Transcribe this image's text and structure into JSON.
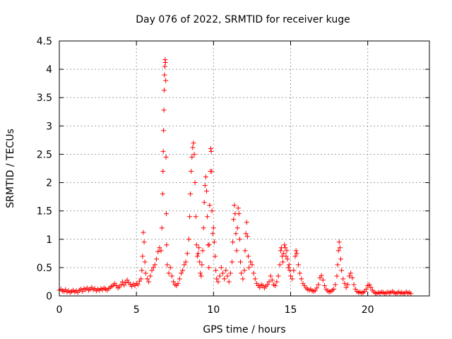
{
  "chart_data": {
    "type": "scatter",
    "title": "Day 076 of 2022, SRMTID for receiver kuge",
    "xlabel": "GPS time / hours",
    "ylabel": "SRMTID / TECUs",
    "xlim": [
      0,
      24
    ],
    "ylim": [
      0,
      4.5
    ],
    "xticks": [
      0,
      5,
      10,
      15,
      20
    ],
    "xtick_labels": [
      "0",
      "5",
      "10",
      "15",
      "20"
    ],
    "yticks": [
      0,
      0.5,
      1,
      1.5,
      2,
      2.5,
      3,
      3.5,
      4,
      4.5
    ],
    "ytick_labels": [
      "0",
      "0.5",
      "1",
      "1.5",
      "2",
      "2.5",
      "3",
      "3.5",
      "4",
      "4.5"
    ],
    "grid": true,
    "marker": "+",
    "series": [
      {
        "name": "SRMTID",
        "color": "#ff0000",
        "points": [
          [
            0.0,
            0.1
          ],
          [
            0.1,
            0.12
          ],
          [
            0.2,
            0.09
          ],
          [
            0.3,
            0.08
          ],
          [
            0.4,
            0.11
          ],
          [
            0.5,
            0.07
          ],
          [
            0.6,
            0.09
          ],
          [
            0.7,
            0.06
          ],
          [
            0.8,
            0.08
          ],
          [
            0.9,
            0.1
          ],
          [
            1.0,
            0.07
          ],
          [
            1.1,
            0.09
          ],
          [
            1.2,
            0.06
          ],
          [
            1.3,
            0.1
          ],
          [
            1.4,
            0.12
          ],
          [
            1.5,
            0.08
          ],
          [
            1.6,
            0.13
          ],
          [
            1.7,
            0.11
          ],
          [
            1.8,
            0.14
          ],
          [
            1.9,
            0.1
          ],
          [
            2.0,
            0.12
          ],
          [
            2.1,
            0.15
          ],
          [
            2.2,
            0.11
          ],
          [
            2.3,
            0.13
          ],
          [
            2.4,
            0.09
          ],
          [
            2.5,
            0.12
          ],
          [
            2.6,
            0.1
          ],
          [
            2.7,
            0.13
          ],
          [
            2.8,
            0.11
          ],
          [
            2.9,
            0.14
          ],
          [
            3.0,
            0.12
          ],
          [
            3.1,
            0.1
          ],
          [
            3.2,
            0.13
          ],
          [
            3.3,
            0.15
          ],
          [
            3.4,
            0.17
          ],
          [
            3.5,
            0.19
          ],
          [
            3.6,
            0.22
          ],
          [
            3.7,
            0.18
          ],
          [
            3.8,
            0.14
          ],
          [
            3.9,
            0.16
          ],
          [
            4.0,
            0.2
          ],
          [
            4.1,
            0.25
          ],
          [
            4.2,
            0.19
          ],
          [
            4.3,
            0.23
          ],
          [
            4.4,
            0.28
          ],
          [
            4.5,
            0.24
          ],
          [
            4.6,
            0.2
          ],
          [
            4.7,
            0.17
          ],
          [
            4.8,
            0.21
          ],
          [
            4.9,
            0.18
          ],
          [
            5.0,
            0.22
          ],
          [
            5.1,
            0.2
          ],
          [
            5.2,
            0.26
          ],
          [
            5.3,
            0.3
          ],
          [
            5.35,
            0.45
          ],
          [
            5.4,
            0.7
          ],
          [
            5.45,
            1.12
          ],
          [
            5.5,
            0.95
          ],
          [
            5.55,
            0.6
          ],
          [
            5.6,
            0.4
          ],
          [
            5.7,
            0.3
          ],
          [
            5.8,
            0.25
          ],
          [
            5.9,
            0.35
          ],
          [
            6.0,
            0.45
          ],
          [
            6.1,
            0.5
          ],
          [
            6.2,
            0.55
          ],
          [
            6.3,
            0.65
          ],
          [
            6.4,
            0.78
          ],
          [
            6.5,
            0.85
          ],
          [
            6.6,
            0.8
          ],
          [
            6.65,
            1.2
          ],
          [
            6.7,
            1.8
          ],
          [
            6.72,
            2.2
          ],
          [
            6.74,
            2.55
          ],
          [
            6.76,
            2.92
          ],
          [
            6.78,
            3.28
          ],
          [
            6.8,
            3.63
          ],
          [
            6.82,
            3.9
          ],
          [
            6.84,
            4.05
          ],
          [
            6.86,
            4.17
          ],
          [
            6.88,
            4.12
          ],
          [
            6.9,
            3.8
          ],
          [
            6.92,
            2.45
          ],
          [
            6.94,
            1.45
          ],
          [
            6.96,
            0.9
          ],
          [
            7.0,
            0.55
          ],
          [
            7.1,
            0.4
          ],
          [
            7.2,
            0.5
          ],
          [
            7.3,
            0.35
          ],
          [
            7.4,
            0.25
          ],
          [
            7.5,
            0.2
          ],
          [
            7.6,
            0.18
          ],
          [
            7.7,
            0.22
          ],
          [
            7.8,
            0.3
          ],
          [
            7.9,
            0.4
          ],
          [
            8.0,
            0.45
          ],
          [
            8.1,
            0.55
          ],
          [
            8.2,
            0.6
          ],
          [
            8.3,
            0.75
          ],
          [
            8.4,
            1.0
          ],
          [
            8.45,
            1.4
          ],
          [
            8.5,
            1.8
          ],
          [
            8.55,
            2.2
          ],
          [
            8.6,
            2.45
          ],
          [
            8.65,
            2.62
          ],
          [
            8.7,
            2.7
          ],
          [
            8.75,
            2.5
          ],
          [
            8.8,
            2.0
          ],
          [
            8.85,
            1.4
          ],
          [
            8.9,
            0.9
          ],
          [
            8.95,
            0.7
          ],
          [
            9.0,
            0.75
          ],
          [
            9.05,
            0.85
          ],
          [
            9.1,
            0.6
          ],
          [
            9.15,
            0.4
          ],
          [
            9.2,
            0.35
          ],
          [
            9.25,
            0.55
          ],
          [
            9.3,
            0.8
          ],
          [
            9.35,
            1.2
          ],
          [
            9.4,
            1.65
          ],
          [
            9.45,
            1.95
          ],
          [
            9.5,
            2.1
          ],
          [
            9.55,
            1.85
          ],
          [
            9.6,
            1.4
          ],
          [
            9.65,
            0.9
          ],
          [
            9.7,
            0.5
          ],
          [
            9.72,
            0.9
          ],
          [
            9.75,
            1.6
          ],
          [
            9.8,
            2.2
          ],
          [
            9.82,
            2.6
          ],
          [
            9.85,
            2.55
          ],
          [
            9.88,
            2.2
          ],
          [
            9.9,
            1.5
          ],
          [
            9.95,
            1.1
          ],
          [
            10.0,
            1.2
          ],
          [
            10.05,
            0.95
          ],
          [
            10.1,
            0.7
          ],
          [
            10.15,
            0.45
          ],
          [
            10.2,
            0.3
          ],
          [
            10.3,
            0.25
          ],
          [
            10.4,
            0.35
          ],
          [
            10.5,
            0.5
          ],
          [
            10.6,
            0.4
          ],
          [
            10.7,
            0.3
          ],
          [
            10.8,
            0.45
          ],
          [
            10.9,
            0.35
          ],
          [
            11.0,
            0.25
          ],
          [
            11.1,
            0.4
          ],
          [
            11.2,
            0.6
          ],
          [
            11.25,
            0.95
          ],
          [
            11.3,
            1.35
          ],
          [
            11.35,
            1.6
          ],
          [
            11.4,
            1.45
          ],
          [
            11.45,
            1.1
          ],
          [
            11.5,
            0.8
          ],
          [
            11.55,
            1.2
          ],
          [
            11.6,
            1.55
          ],
          [
            11.65,
            1.45
          ],
          [
            11.7,
            1.0
          ],
          [
            11.75,
            0.6
          ],
          [
            11.8,
            0.4
          ],
          [
            11.9,
            0.3
          ],
          [
            12.0,
            0.45
          ],
          [
            12.05,
            0.8
          ],
          [
            12.1,
            1.1
          ],
          [
            12.15,
            1.3
          ],
          [
            12.2,
            1.05
          ],
          [
            12.25,
            0.7
          ],
          [
            12.3,
            0.5
          ],
          [
            12.4,
            0.6
          ],
          [
            12.5,
            0.55
          ],
          [
            12.6,
            0.4
          ],
          [
            12.7,
            0.3
          ],
          [
            12.8,
            0.22
          ],
          [
            12.9,
            0.18
          ],
          [
            13.0,
            0.15
          ],
          [
            13.1,
            0.2
          ],
          [
            13.2,
            0.18
          ],
          [
            13.3,
            0.14
          ],
          [
            13.4,
            0.17
          ],
          [
            13.5,
            0.2
          ],
          [
            13.6,
            0.25
          ],
          [
            13.7,
            0.35
          ],
          [
            13.8,
            0.28
          ],
          [
            13.9,
            0.2
          ],
          [
            14.0,
            0.18
          ],
          [
            14.1,
            0.25
          ],
          [
            14.2,
            0.35
          ],
          [
            14.3,
            0.55
          ],
          [
            14.35,
            0.8
          ],
          [
            14.4,
            0.85
          ],
          [
            14.45,
            0.7
          ],
          [
            14.5,
            0.6
          ],
          [
            14.55,
            0.75
          ],
          [
            14.6,
            0.9
          ],
          [
            14.65,
            0.85
          ],
          [
            14.7,
            0.7
          ],
          [
            14.75,
            0.8
          ],
          [
            14.8,
            0.65
          ],
          [
            14.85,
            0.5
          ],
          [
            14.9,
            0.55
          ],
          [
            14.95,
            0.45
          ],
          [
            15.0,
            0.35
          ],
          [
            15.1,
            0.3
          ],
          [
            15.2,
            0.45
          ],
          [
            15.3,
            0.7
          ],
          [
            15.35,
            0.8
          ],
          [
            15.4,
            0.75
          ],
          [
            15.5,
            0.55
          ],
          [
            15.6,
            0.4
          ],
          [
            15.7,
            0.3
          ],
          [
            15.8,
            0.22
          ],
          [
            15.9,
            0.18
          ],
          [
            16.0,
            0.14
          ],
          [
            16.1,
            0.12
          ],
          [
            16.2,
            0.1
          ],
          [
            16.3,
            0.12
          ],
          [
            16.4,
            0.09
          ],
          [
            16.5,
            0.08
          ],
          [
            16.6,
            0.1
          ],
          [
            16.7,
            0.14
          ],
          [
            16.8,
            0.2
          ],
          [
            16.9,
            0.32
          ],
          [
            17.0,
            0.36
          ],
          [
            17.1,
            0.28
          ],
          [
            17.2,
            0.18
          ],
          [
            17.3,
            0.12
          ],
          [
            17.4,
            0.09
          ],
          [
            17.5,
            0.07
          ],
          [
            17.6,
            0.08
          ],
          [
            17.7,
            0.1
          ],
          [
            17.8,
            0.12
          ],
          [
            17.9,
            0.2
          ],
          [
            18.0,
            0.35
          ],
          [
            18.05,
            0.55
          ],
          [
            18.1,
            0.8
          ],
          [
            18.15,
            0.95
          ],
          [
            18.2,
            0.85
          ],
          [
            18.25,
            0.65
          ],
          [
            18.3,
            0.45
          ],
          [
            18.4,
            0.3
          ],
          [
            18.5,
            0.22
          ],
          [
            18.6,
            0.15
          ],
          [
            18.7,
            0.2
          ],
          [
            18.8,
            0.35
          ],
          [
            18.9,
            0.4
          ],
          [
            19.0,
            0.32
          ],
          [
            19.1,
            0.2
          ],
          [
            19.2,
            0.12
          ],
          [
            19.3,
            0.08
          ],
          [
            19.4,
            0.06
          ],
          [
            19.5,
            0.07
          ],
          [
            19.6,
            0.05
          ],
          [
            19.7,
            0.06
          ],
          [
            19.8,
            0.08
          ],
          [
            19.9,
            0.12
          ],
          [
            20.0,
            0.18
          ],
          [
            20.1,
            0.2
          ],
          [
            20.2,
            0.15
          ],
          [
            20.3,
            0.1
          ],
          [
            20.4,
            0.07
          ],
          [
            20.5,
            0.05
          ],
          [
            20.6,
            0.04
          ],
          [
            20.7,
            0.06
          ],
          [
            20.8,
            0.05
          ],
          [
            20.9,
            0.07
          ],
          [
            21.0,
            0.06
          ],
          [
            21.1,
            0.04
          ],
          [
            21.2,
            0.05
          ],
          [
            21.3,
            0.07
          ],
          [
            21.4,
            0.05
          ],
          [
            21.5,
            0.06
          ],
          [
            21.6,
            0.08
          ],
          [
            21.7,
            0.06
          ],
          [
            21.8,
            0.04
          ],
          [
            21.9,
            0.05
          ],
          [
            22.0,
            0.07
          ],
          [
            22.1,
            0.05
          ],
          [
            22.2,
            0.06
          ],
          [
            22.3,
            0.04
          ],
          [
            22.4,
            0.05
          ],
          [
            22.5,
            0.07
          ],
          [
            22.6,
            0.05
          ],
          [
            22.7,
            0.06
          ],
          [
            22.8,
            0.04
          ]
        ]
      }
    ]
  }
}
